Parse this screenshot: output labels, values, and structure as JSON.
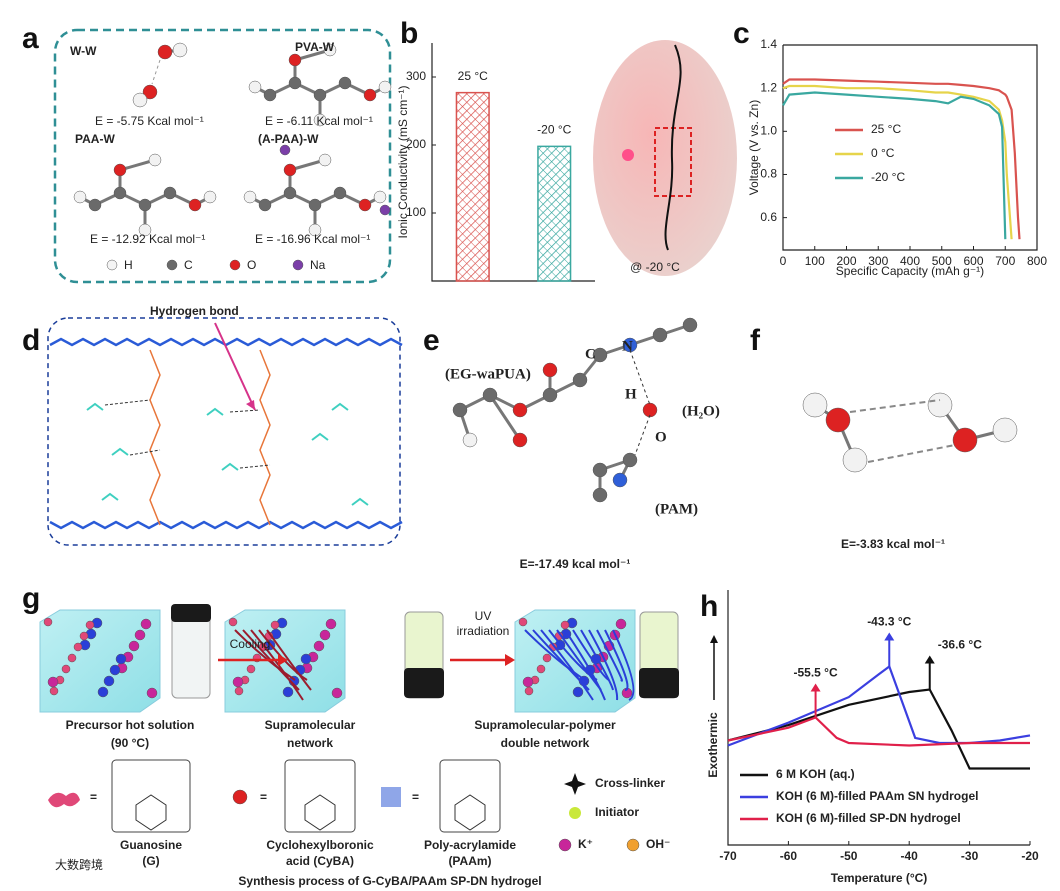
{
  "panel_letters": [
    "a",
    "b",
    "c",
    "d",
    "e",
    "f",
    "g",
    "h"
  ],
  "panel_a": {
    "labels": [
      "W-W",
      "PVA-W",
      "PAA-W",
      "(A-PAA)-W"
    ],
    "energies": [
      "E = -5.75 Kcal mol⁻¹",
      "E = -6.11 Kcal mol⁻¹",
      "E = -12.92 Kcal mol⁻¹",
      "E = -16.96 Kcal mol⁻¹"
    ],
    "legend": [
      "H",
      "C",
      "O",
      "Na"
    ]
  },
  "chart_data": [
    {
      "type": "bar",
      "ylabel": "Ionic Conductivity (mS cm⁻¹)",
      "categories": [
        "25 °C",
        "-20 °C"
      ],
      "values": [
        277,
        198
      ],
      "colors": [
        "#d9534f",
        "#3aa8a0"
      ],
      "ylim": [
        0,
        350
      ],
      "yticks": [
        100,
        200,
        300
      ],
      "annotation": "@ -20 °C"
    },
    {
      "type": "line",
      "xlabel": "Specific Capacity (mAh g⁻¹)",
      "ylabel": "Voltage (V vs. Zn)",
      "x": [
        0,
        20,
        100,
        200,
        300,
        400,
        480,
        520,
        560,
        600,
        650,
        680,
        690,
        700,
        705,
        720,
        730,
        740,
        745
      ],
      "series": [
        {
          "name": "25 °C",
          "color": "#d9534f",
          "values": [
            1.22,
            1.24,
            1.24,
            1.235,
            1.23,
            1.225,
            1.22,
            1.22,
            1.215,
            1.21,
            1.2,
            1.19,
            1.18,
            1.17,
            1.16,
            1.1,
            0.9,
            0.6,
            0.5
          ]
        },
        {
          "name": "0 °C",
          "color": "#e6d44a",
          "values": [
            1.2,
            1.21,
            1.21,
            1.2,
            1.2,
            1.19,
            1.18,
            1.18,
            1.17,
            1.16,
            1.14,
            1.1,
            1.05,
            0.95,
            0.8,
            0.5,
            null,
            null,
            null
          ]
        },
        {
          "name": "-20 °C",
          "color": "#3aa8a0",
          "values": [
            1.12,
            1.17,
            1.18,
            1.17,
            1.16,
            1.15,
            1.14,
            1.13,
            1.16,
            1.15,
            1.12,
            1.08,
            1.02,
            0.5,
            null,
            null,
            null,
            null,
            null
          ]
        }
      ],
      "xlim": [
        0,
        800
      ],
      "xticks": [
        0,
        100,
        200,
        300,
        400,
        500,
        600,
        700,
        800
      ],
      "ylim": [
        0.45,
        1.4
      ],
      "yticks": [
        0.6,
        0.8,
        {
          "value": 1,
          "label": "1.0"
        },
        1.2,
        1.4
      ]
    },
    {
      "type": "line",
      "xlabel": "Temperature (°C)",
      "ylabel": "Exothermic",
      "series": [
        {
          "name": "6 M KOH (aq.)",
          "color": "#111111",
          "x": [
            -70,
            -60,
            -50,
            -40,
            -36.6,
            -33,
            -30,
            -25,
            -20
          ],
          "values": [
            41,
            47,
            55,
            60,
            61,
            45,
            30,
            30,
            30
          ]
        },
        {
          "name": "KOH (6 M)-filled PAAm SN hydrogel",
          "color": "#3b3fe0",
          "x": [
            -70,
            -60,
            -50,
            -45,
            -43.3,
            -41,
            -39,
            -35,
            -30,
            -25,
            -20
          ],
          "values": [
            39,
            48,
            58,
            67,
            70,
            55,
            42,
            40,
            40,
            41,
            43
          ]
        },
        {
          "name": "KOH (6 M)-filled SP-DN hydrogel",
          "color": "#e0204a",
          "x": [
            -70,
            -60,
            -55.5,
            -52,
            -50,
            -40,
            -30,
            -20
          ],
          "values": [
            41,
            46,
            50,
            42,
            40,
            39,
            40,
            40
          ]
        }
      ],
      "xlim": [
        -70,
        -20
      ],
      "xticks": [
        -70,
        -60,
        -50,
        -40,
        -30,
        -20
      ],
      "ylim": [
        0,
        100
      ],
      "annotations": [
        "-36.6 °C",
        "-43.3 °C",
        "-55.5 °C"
      ]
    }
  ],
  "panel_d": {
    "label": "Hydrogen bond"
  },
  "panel_e": {
    "labels": [
      "(EG-waPUA)",
      "C",
      "N",
      "H",
      "(H₂O)",
      "O",
      "(PAM)"
    ],
    "energy": "E=-17.49 kcal mol⁻¹"
  },
  "panel_f": {
    "energy": "E=-3.83 kcal mol⁻¹"
  },
  "panel_g": {
    "steps": [
      [
        "Cooling"
      ],
      [
        "UV",
        "irradiation"
      ]
    ],
    "stages": [
      [
        "Precursor hot solution",
        "(90 °C)"
      ],
      [
        "Supramolecular",
        "network"
      ],
      [
        "Supramolecular-polymer",
        "double network"
      ]
    ],
    "components": [
      [
        "Guanosine",
        "(G)"
      ],
      [
        "Cyclohexylboronic",
        "acid (CyBA)"
      ],
      [
        "Poly-acrylamide",
        "(PAAm)"
      ]
    ],
    "legend": [
      "Cross-linker",
      "Initiator",
      "K⁺",
      "OH⁻"
    ],
    "caption": "Synthesis process of G-CyBA/PAAm SP-DN hydrogel"
  },
  "watermark": "大数跨境"
}
